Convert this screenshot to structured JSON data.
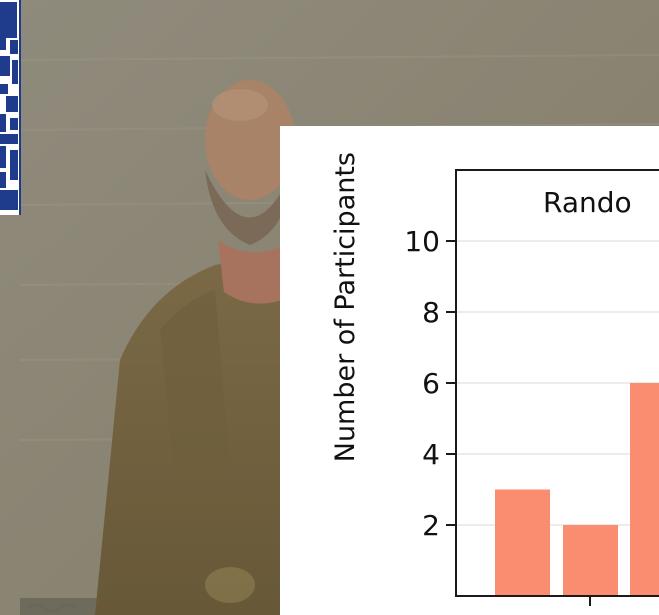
{
  "colors": {
    "bar": "#fa8c70",
    "frame": "#1a1a1a",
    "grid": "#ececec",
    "qr": "#1f3c8c"
  },
  "background": {
    "description_icon": "portrait-painting-icon",
    "qr_icon": "qr-code-icon"
  },
  "chart_data": {
    "type": "bar",
    "title": "Rando",
    "xlabel": "",
    "ylabel": "Number of Participants",
    "values": [
      3,
      2,
      6
    ],
    "ylim": [
      0,
      11.5
    ],
    "yticks": [
      2,
      4,
      6,
      8,
      10
    ],
    "grid": true
  }
}
